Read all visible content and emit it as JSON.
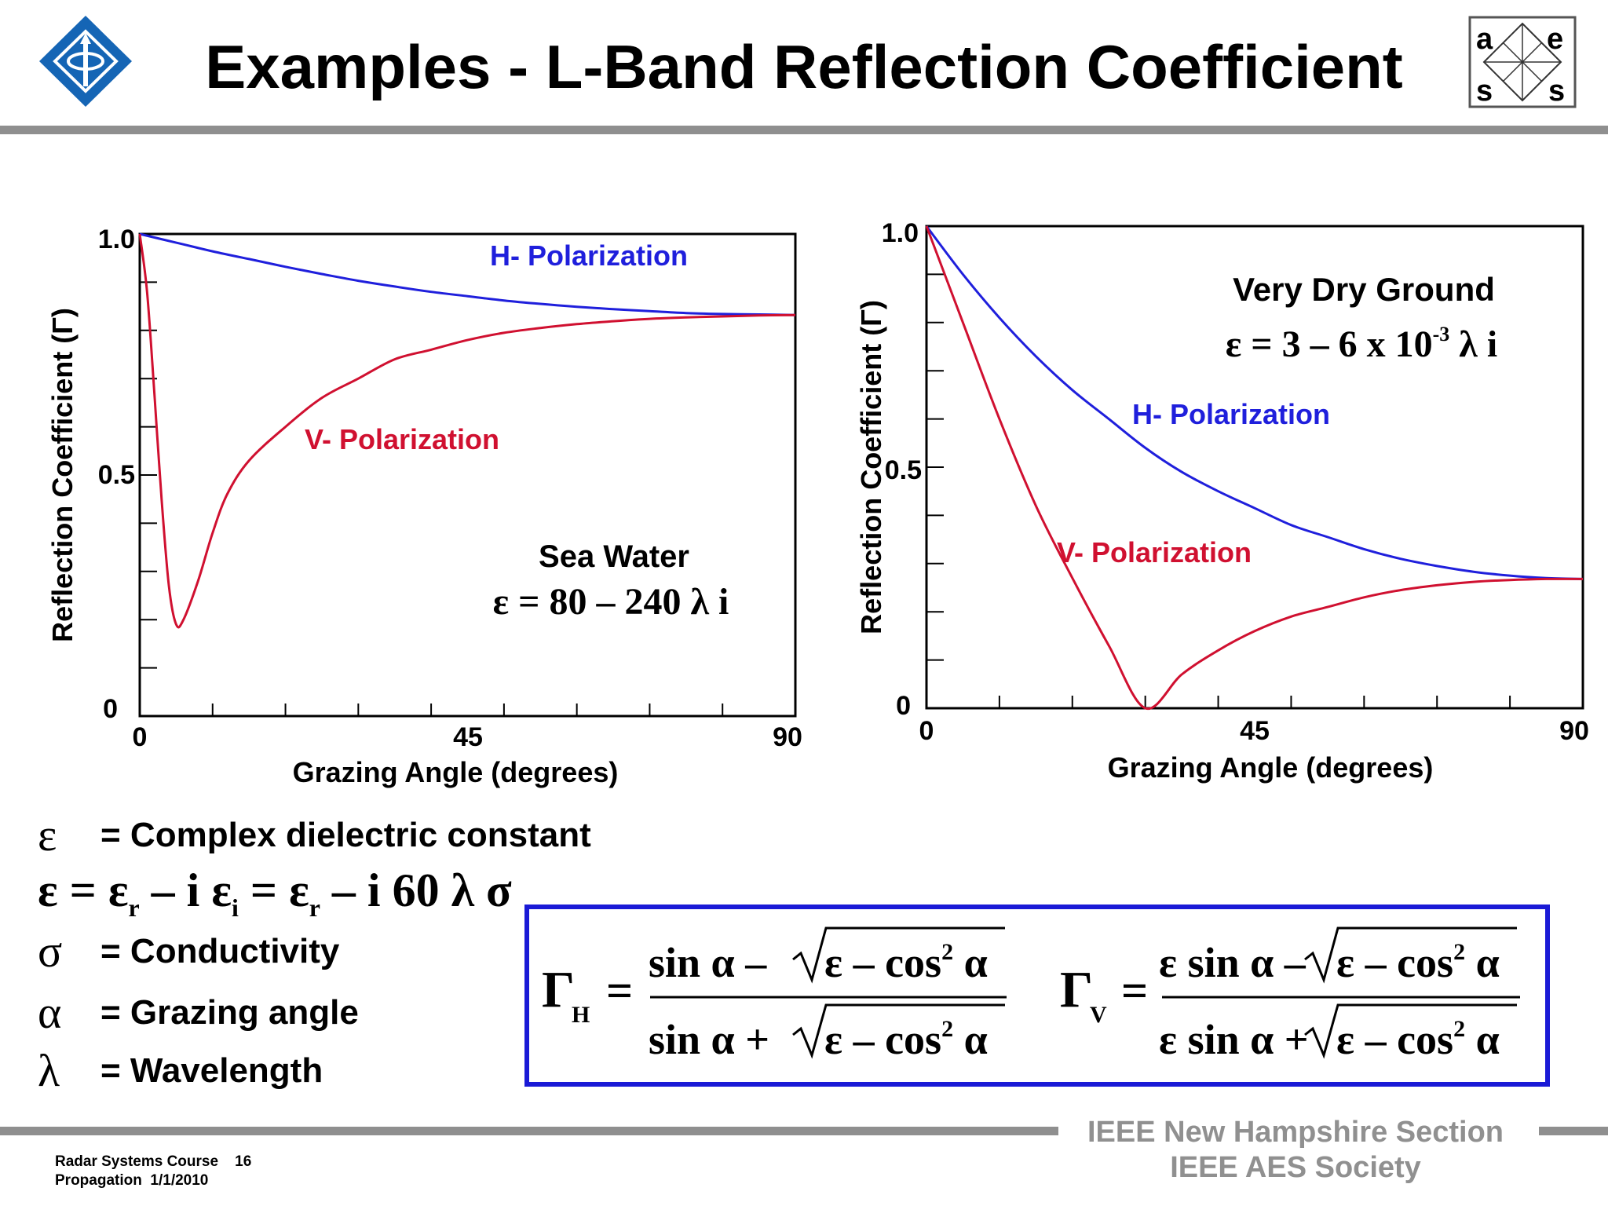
{
  "title": "Examples - L-Band Reflection Coefficient",
  "logos": {
    "ieee_icon": "ieee-diamond-logo",
    "aes_letters": [
      "a",
      "e",
      "s",
      "s"
    ]
  },
  "charts": {
    "sea": {
      "ylabel": "Reflection Coefficient (Γ)",
      "xlabel": "Grazing Angle (degrees)",
      "x_ticks": [
        "0",
        "45",
        "90"
      ],
      "y_ticks": [
        "0",
        "0.5",
        "1.0"
      ],
      "h_label": "H- Polarization",
      "v_label": "V- Polarization",
      "material": "Sea Water",
      "epsilon_formula": "ε = 80 – 240 λ i"
    },
    "dry": {
      "ylabel": "Reflection Coefficient (Γ)",
      "xlabel": "Grazing Angle (degrees)",
      "x_ticks": [
        "0",
        "45",
        "90"
      ],
      "y_ticks": [
        "0",
        "0.5",
        "1.0"
      ],
      "h_label": "H- Polarization",
      "v_label": "V- Polarization",
      "material": "Very Dry Ground",
      "epsilon_pre": "ε = 3 – 6 x 10",
      "epsilon_exp": "-3",
      "epsilon_post": " λ i"
    }
  },
  "chart_data": [
    {
      "type": "line",
      "title": "Sea Water",
      "xlabel": "Grazing Angle (degrees)",
      "ylabel": "Reflection Coefficient (Γ)",
      "xlim": [
        0,
        90
      ],
      "ylim": [
        0,
        1
      ],
      "grid": false,
      "series": [
        {
          "name": "H- Polarization",
          "color": "#1f1fdc",
          "x": [
            0,
            5,
            10,
            15,
            20,
            25,
            30,
            35,
            40,
            45,
            50,
            55,
            60,
            65,
            70,
            75,
            80,
            85,
            90
          ],
          "y": [
            1.0,
            0.982,
            0.964,
            0.948,
            0.932,
            0.917,
            0.903,
            0.891,
            0.88,
            0.871,
            0.862,
            0.855,
            0.849,
            0.844,
            0.84,
            0.836,
            0.834,
            0.833,
            0.832
          ]
        },
        {
          "name": "V- Polarization",
          "color": "#d01030",
          "x": [
            0,
            1,
            2,
            3,
            4,
            5,
            6,
            8,
            10,
            12,
            15,
            20,
            25,
            30,
            35,
            40,
            45,
            50,
            55,
            60,
            65,
            70,
            75,
            80,
            85,
            90
          ],
          "y": [
            1.0,
            0.88,
            0.67,
            0.45,
            0.27,
            0.19,
            0.2,
            0.28,
            0.38,
            0.46,
            0.53,
            0.6,
            0.66,
            0.7,
            0.74,
            0.76,
            0.78,
            0.795,
            0.805,
            0.813,
            0.819,
            0.824,
            0.827,
            0.829,
            0.831,
            0.832
          ]
        }
      ]
    },
    {
      "type": "line",
      "title": "Very Dry Ground",
      "xlabel": "Grazing Angle (degrees)",
      "ylabel": "Reflection Coefficient (Γ)",
      "xlim": [
        0,
        90
      ],
      "ylim": [
        0,
        1
      ],
      "grid": false,
      "series": [
        {
          "name": "H- Polarization",
          "color": "#1f1fdc",
          "x": [
            0,
            5,
            10,
            15,
            20,
            25,
            30,
            35,
            40,
            45,
            50,
            55,
            60,
            65,
            70,
            75,
            80,
            85,
            90
          ],
          "y": [
            1.0,
            0.9,
            0.81,
            0.73,
            0.66,
            0.6,
            0.54,
            0.49,
            0.45,
            0.415,
            0.38,
            0.355,
            0.33,
            0.31,
            0.295,
            0.283,
            0.275,
            0.27,
            0.268
          ]
        },
        {
          "name": "V- Polarization",
          "color": "#d01030",
          "x": [
            0,
            5,
            10,
            15,
            20,
            25,
            30,
            35,
            40,
            45,
            50,
            55,
            60,
            65,
            70,
            75,
            80,
            85,
            90
          ],
          "y": [
            1.0,
            0.8,
            0.6,
            0.42,
            0.27,
            0.13,
            0.0,
            0.07,
            0.12,
            0.16,
            0.19,
            0.21,
            0.23,
            0.245,
            0.255,
            0.262,
            0.266,
            0.268,
            0.268
          ]
        }
      ]
    }
  ],
  "definitions": [
    {
      "symbol": "ε",
      "text": "= Complex dielectric constant"
    },
    {
      "symbol": "σ",
      "text": "= Conductivity"
    },
    {
      "symbol": "α",
      "text": "= Grazing angle"
    },
    {
      "symbol": "λ",
      "text": "= Wavelength"
    }
  ],
  "epsilon_equation": {
    "lhs": "ε = ε",
    "sub_r": "r",
    "mid": " – i ε",
    "sub_i": "i",
    "eq": " = ε",
    "sub_r2": "r",
    "tail": " – i 60 λ σ"
  },
  "formulas": {
    "gamma_h": {
      "symbol": "Γ",
      "sub": "H",
      "num_a": "sin α –",
      "den_a": "sin α +",
      "root": "ε – cos",
      "pow": "2",
      "root_end": " α"
    },
    "gamma_v": {
      "symbol": "Γ",
      "sub": "V",
      "num_a": "ε sin α –",
      "den_a": "ε sin α +",
      "root": "ε – cos",
      "pow": "2",
      "root_end": " α"
    },
    "box_color": "#1a1ad6"
  },
  "footer": {
    "course": "Radar Systems Course",
    "page": "16",
    "section": "Propagation",
    "date": "1/1/2010",
    "org1": "IEEE New Hampshire Section",
    "org2": "IEEE AES Society"
  }
}
